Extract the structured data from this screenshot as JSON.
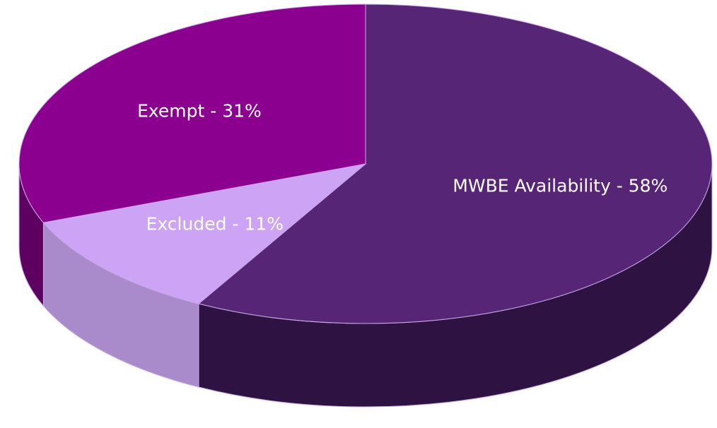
{
  "chart_data": {
    "type": "pie",
    "labels": [
      "MWBE Availability - 58%",
      "Excluded - 11%",
      "Exempt - 31%"
    ],
    "values": [
      58,
      11,
      31
    ],
    "colors": [
      "#562576",
      "#cda3f5",
      "#8c008f"
    ],
    "side_colors": [
      "#2e1242",
      "#a98acb",
      "#5e0062"
    ]
  }
}
